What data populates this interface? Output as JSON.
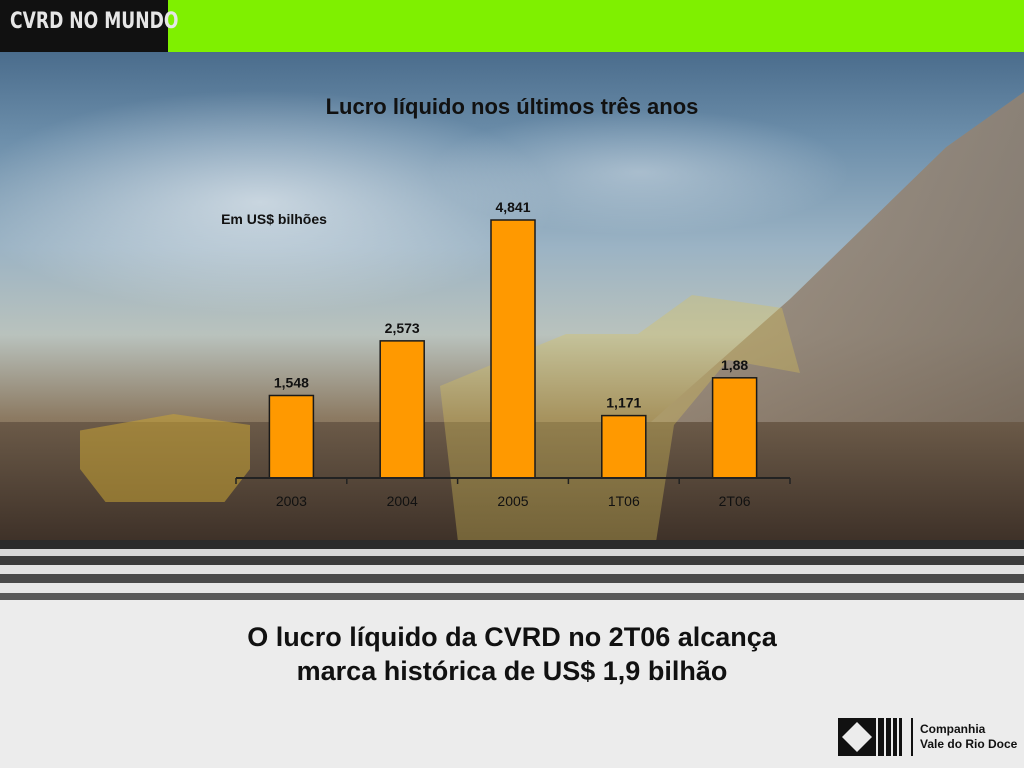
{
  "header": {
    "brand_label": "CVRD NO MUNDO"
  },
  "colors": {
    "header_green": "#7ff000",
    "bar_fill": "#ff9900",
    "bar_stroke": "#1a1a1a"
  },
  "chart_data": {
    "type": "bar",
    "title": "Lucro líquido nos últimos três anos",
    "unit_label": "Em US$ bilhões",
    "categories": [
      "2003",
      "2004",
      "2005",
      "1T06",
      "2T06"
    ],
    "values": [
      1.548,
      2.573,
      4.841,
      1.171,
      1.88
    ],
    "value_labels": [
      "1,548",
      "2,573",
      "4,841",
      "1,171",
      "1,88"
    ],
    "ylim": [
      0,
      5
    ],
    "grid": false,
    "legend": "none"
  },
  "headline": {
    "line1": "O lucro líquido da CVRD no 2T06 alcança",
    "line2": "marca histórica de US$ 1,9 bilhão"
  },
  "company": {
    "line1": "Companhia",
    "line2": "Vale do Rio Doce"
  }
}
